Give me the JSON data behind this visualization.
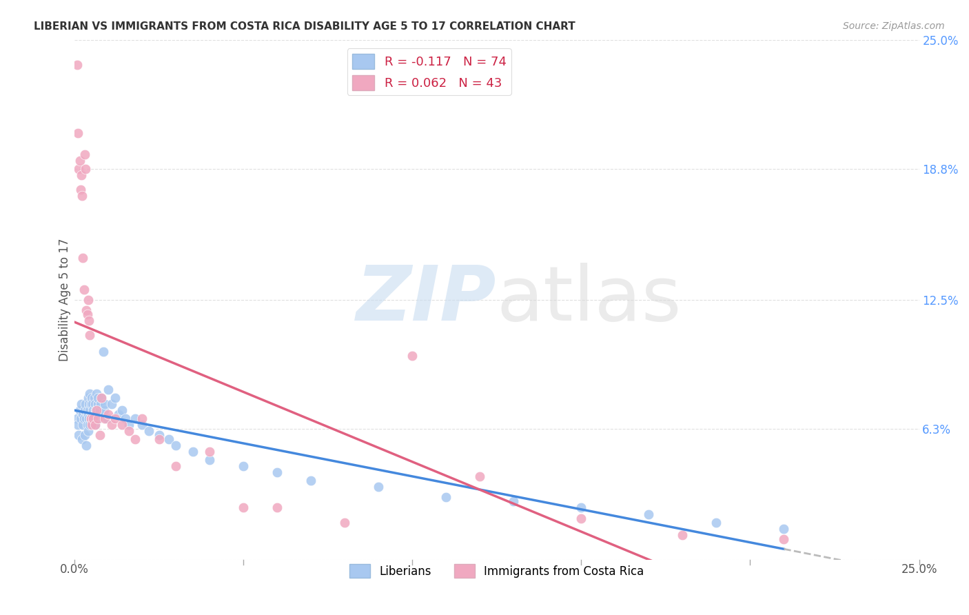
{
  "title": "LIBERIAN VS IMMIGRANTS FROM COSTA RICA DISABILITY AGE 5 TO 17 CORRELATION CHART",
  "source": "Source: ZipAtlas.com",
  "ylabel": "Disability Age 5 to 17",
  "xlim": [
    0.0,
    0.25
  ],
  "ylim": [
    0.0,
    0.25
  ],
  "ytick_positions": [
    0.0,
    0.063,
    0.125,
    0.188,
    0.25
  ],
  "ytick_labels": [
    "",
    "6.3%",
    "12.5%",
    "18.8%",
    "25.0%"
  ],
  "grid_color": "#e0e0e0",
  "background_color": "#ffffff",
  "liberian_color": "#a8c8f0",
  "costa_rica_color": "#f0a8c0",
  "liberian_line_color": "#4488dd",
  "costa_rica_line_color": "#e06080",
  "dash_color": "#bbbbbb",
  "liberian_R": "-0.117",
  "liberian_N": "74",
  "costa_rica_R": "0.062",
  "costa_rica_N": "43",
  "liberian_points_x": [
    0.0008,
    0.001,
    0.0012,
    0.0015,
    0.0018,
    0.002,
    0.0022,
    0.0025,
    0.0025,
    0.0028,
    0.003,
    0.003,
    0.0032,
    0.0035,
    0.0035,
    0.0038,
    0.0038,
    0.004,
    0.004,
    0.004,
    0.0042,
    0.0042,
    0.0045,
    0.0045,
    0.0045,
    0.0048,
    0.0048,
    0.005,
    0.005,
    0.0052,
    0.0052,
    0.0055,
    0.0055,
    0.0058,
    0.006,
    0.006,
    0.0062,
    0.0065,
    0.0065,
    0.0068,
    0.007,
    0.0072,
    0.0075,
    0.0078,
    0.008,
    0.0085,
    0.0088,
    0.009,
    0.0095,
    0.01,
    0.011,
    0.012,
    0.013,
    0.014,
    0.015,
    0.016,
    0.018,
    0.02,
    0.022,
    0.025,
    0.028,
    0.03,
    0.035,
    0.04,
    0.05,
    0.06,
    0.07,
    0.09,
    0.11,
    0.13,
    0.15,
    0.17,
    0.19,
    0.21
  ],
  "liberian_points_y": [
    0.068,
    0.065,
    0.06,
    0.072,
    0.068,
    0.075,
    0.058,
    0.07,
    0.065,
    0.068,
    0.072,
    0.06,
    0.075,
    0.068,
    0.055,
    0.072,
    0.065,
    0.078,
    0.07,
    0.062,
    0.075,
    0.068,
    0.08,
    0.072,
    0.065,
    0.075,
    0.068,
    0.078,
    0.07,
    0.075,
    0.065,
    0.072,
    0.068,
    0.078,
    0.075,
    0.065,
    0.072,
    0.08,
    0.07,
    0.075,
    0.078,
    0.068,
    0.072,
    0.075,
    0.078,
    0.1,
    0.072,
    0.075,
    0.068,
    0.082,
    0.075,
    0.078,
    0.07,
    0.072,
    0.068,
    0.065,
    0.068,
    0.065,
    0.062,
    0.06,
    0.058,
    0.055,
    0.052,
    0.048,
    0.045,
    0.042,
    0.038,
    0.035,
    0.03,
    0.028,
    0.025,
    0.022,
    0.018,
    0.015
  ],
  "costa_rica_points_x": [
    0.0008,
    0.001,
    0.0012,
    0.0015,
    0.0018,
    0.002,
    0.0022,
    0.0025,
    0.0028,
    0.003,
    0.0032,
    0.0035,
    0.0038,
    0.004,
    0.0042,
    0.0045,
    0.0048,
    0.005,
    0.0055,
    0.006,
    0.0065,
    0.007,
    0.0075,
    0.008,
    0.009,
    0.01,
    0.011,
    0.012,
    0.014,
    0.016,
    0.018,
    0.02,
    0.025,
    0.03,
    0.04,
    0.05,
    0.06,
    0.08,
    0.1,
    0.12,
    0.15,
    0.18,
    0.21
  ],
  "costa_rica_points_y": [
    0.238,
    0.205,
    0.188,
    0.192,
    0.178,
    0.185,
    0.175,
    0.145,
    0.13,
    0.195,
    0.188,
    0.12,
    0.118,
    0.125,
    0.115,
    0.108,
    0.068,
    0.065,
    0.068,
    0.065,
    0.072,
    0.068,
    0.06,
    0.078,
    0.068,
    0.07,
    0.065,
    0.068,
    0.065,
    0.062,
    0.058,
    0.068,
    0.058,
    0.045,
    0.052,
    0.025,
    0.025,
    0.018,
    0.098,
    0.04,
    0.02,
    0.012,
    0.01
  ]
}
